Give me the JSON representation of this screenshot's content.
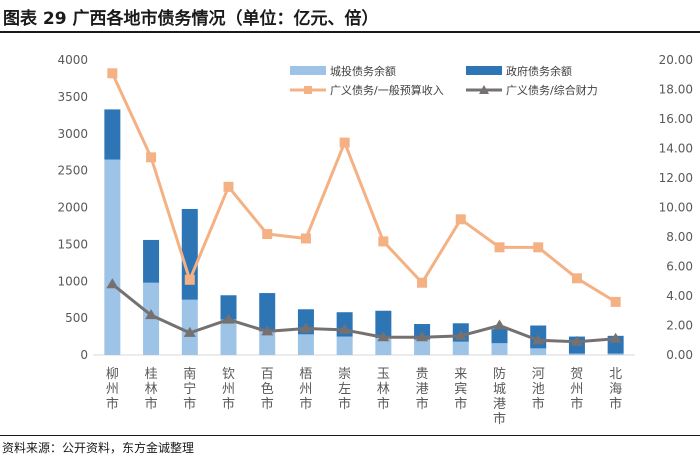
{
  "title": "图表 29    广西各地市债务情况（单位：亿元、倍）",
  "source": "资料来源：公开资料，东方金诚整理",
  "colors": {
    "city_investment": "#9dc3e6",
    "government": "#2e75b6",
    "ratio_budget": "#f4b183",
    "ratio_finance": "#767171",
    "axis_text": "#595959",
    "grid": "#d9d9d9"
  },
  "chart_data": {
    "type": "bar",
    "title": "广西各地市债务情况（单位：亿元、倍）",
    "categories": [
      "柳州市",
      "桂林市",
      "南宁市",
      "钦州市",
      "百色市",
      "梧州市",
      "崇左市",
      "玉林市",
      "贵港市",
      "来宾市",
      "防城港市",
      "河池市",
      "贺州市",
      "北海市"
    ],
    "left_axis": {
      "ylim": [
        0,
        4000
      ],
      "ticks": [
        "0",
        "500",
        "1000",
        "1500",
        "2000",
        "2500",
        "3000",
        "3500",
        "4000"
      ]
    },
    "right_axis": {
      "ylim": [
        0,
        20
      ],
      "ticks": [
        "0.00",
        "2.00",
        "4.00",
        "6.00",
        "8.00",
        "10.00",
        "12.00",
        "14.00",
        "16.00",
        "18.00",
        "20.00"
      ]
    },
    "series": [
      {
        "name": "城投债务余额",
        "kind": "stacked-bar",
        "axis": "left",
        "values": [
          2650,
          980,
          750,
          480,
          320,
          280,
          250,
          230,
          210,
          180,
          160,
          90,
          20,
          20
        ]
      },
      {
        "name": "政府债务余额",
        "kind": "stacked-bar",
        "axis": "left",
        "values": [
          680,
          580,
          1230,
          330,
          520,
          340,
          330,
          370,
          210,
          250,
          190,
          310,
          230,
          240
        ]
      },
      {
        "name": "广义债务/一般预算收入",
        "kind": "line",
        "axis": "right",
        "values": [
          19.1,
          13.4,
          5.1,
          11.4,
          8.2,
          7.9,
          14.4,
          7.7,
          4.9,
          9.2,
          7.3,
          7.3,
          5.2,
          3.6
        ]
      },
      {
        "name": "广义债务/综合财力",
        "kind": "line",
        "axis": "right",
        "values": [
          4.8,
          2.7,
          1.5,
          2.4,
          1.6,
          1.8,
          1.7,
          1.2,
          1.2,
          1.3,
          2.0,
          1.0,
          0.9,
          1.1
        ]
      }
    ],
    "legend_position": "top-right",
    "grid": false
  }
}
